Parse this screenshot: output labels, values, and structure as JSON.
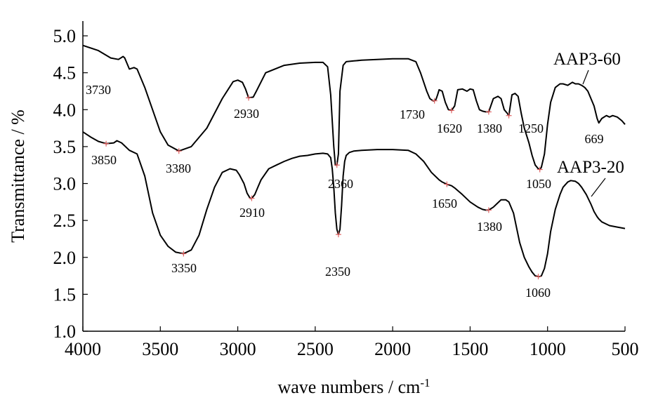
{
  "chart_data": {
    "type": "line",
    "title": "",
    "xlabel": "wave numbers / cm",
    "xlabel_superscript": "-1",
    "ylabel": "Transmittance / %",
    "xlim": [
      4000,
      500
    ],
    "ylim": [
      1.0,
      5.2
    ],
    "x_reversed": true,
    "x_ticks": [
      4000,
      3500,
      3000,
      2500,
      2000,
      1500,
      1000,
      500
    ],
    "x_tick_labels": [
      "4000",
      "3500",
      "3000",
      "2500",
      "2000",
      "1500",
      "1000",
      "500"
    ],
    "y_ticks": [
      1.0,
      1.5,
      2.0,
      2.5,
      3.0,
      3.5,
      4.0,
      4.5,
      5.0
    ],
    "y_tick_labels": [
      "1.0",
      "1.5",
      "2.0",
      "2.5",
      "3.0",
      "3.5",
      "4.0",
      "4.5",
      "5.0"
    ],
    "grid": false,
    "series": [
      {
        "name": "AAP3-60",
        "color": "#000000",
        "x": [
          4000,
          3900,
          3820,
          3770,
          3740,
          3730,
          3700,
          3670,
          3650,
          3600,
          3500,
          3450,
          3380,
          3300,
          3200,
          3100,
          3030,
          3000,
          2970,
          2950,
          2930,
          2900,
          2880,
          2820,
          2700,
          2600,
          2500,
          2450,
          2420,
          2400,
          2380,
          2370,
          2360,
          2350,
          2340,
          2320,
          2300,
          2250,
          2200,
          2100,
          2000,
          1900,
          1850,
          1820,
          1780,
          1760,
          1740,
          1730,
          1720,
          1710,
          1700,
          1680,
          1660,
          1640,
          1620,
          1600,
          1580,
          1550,
          1520,
          1500,
          1480,
          1460,
          1440,
          1420,
          1400,
          1380,
          1350,
          1320,
          1300,
          1280,
          1260,
          1250,
          1230,
          1210,
          1190,
          1170,
          1150,
          1120,
          1100,
          1080,
          1060,
          1050,
          1040,
          1020,
          1000,
          980,
          950,
          920,
          900,
          870,
          840,
          820,
          800,
          780,
          760,
          740,
          720,
          700,
          680,
          669,
          650,
          620,
          600,
          580,
          550,
          520,
          500
        ],
        "y": [
          4.87,
          4.8,
          4.7,
          4.68,
          4.72,
          4.7,
          4.55,
          4.57,
          4.55,
          4.3,
          3.7,
          3.52,
          3.44,
          3.5,
          3.75,
          4.15,
          4.38,
          4.4,
          4.37,
          4.28,
          4.16,
          4.17,
          4.25,
          4.5,
          4.6,
          4.63,
          4.64,
          4.64,
          4.58,
          4.2,
          3.5,
          3.25,
          3.25,
          3.4,
          4.25,
          4.6,
          4.65,
          4.66,
          4.67,
          4.68,
          4.69,
          4.69,
          4.65,
          4.5,
          4.25,
          4.15,
          4.12,
          4.12,
          4.14,
          4.2,
          4.27,
          4.25,
          4.1,
          4.0,
          3.99,
          4.05,
          4.27,
          4.28,
          4.25,
          4.28,
          4.27,
          4.12,
          4.0,
          3.98,
          3.97,
          3.97,
          4.15,
          4.18,
          4.15,
          4.0,
          3.95,
          3.92,
          4.2,
          4.22,
          4.18,
          3.95,
          3.75,
          3.55,
          3.38,
          3.25,
          3.2,
          3.19,
          3.22,
          3.4,
          3.8,
          4.1,
          4.3,
          4.35,
          4.35,
          4.33,
          4.37,
          4.35,
          4.35,
          4.33,
          4.3,
          4.25,
          4.15,
          4.05,
          3.88,
          3.82,
          3.88,
          3.92,
          3.9,
          3.92,
          3.9,
          3.85,
          3.8
        ]
      },
      {
        "name": "AAP3-20",
        "color": "#000000",
        "x": [
          4000,
          3950,
          3900,
          3850,
          3800,
          3780,
          3750,
          3700,
          3650,
          3600,
          3550,
          3500,
          3450,
          3400,
          3350,
          3300,
          3250,
          3200,
          3150,
          3100,
          3050,
          3010,
          2990,
          2960,
          2940,
          2920,
          2910,
          2890,
          2870,
          2850,
          2800,
          2750,
          2700,
          2650,
          2600,
          2550,
          2500,
          2450,
          2420,
          2400,
          2390,
          2380,
          2370,
          2360,
          2350,
          2340,
          2330,
          2320,
          2310,
          2300,
          2280,
          2250,
          2200,
          2100,
          2000,
          1900,
          1850,
          1800,
          1750,
          1700,
          1680,
          1660,
          1650,
          1620,
          1600,
          1550,
          1500,
          1450,
          1420,
          1400,
          1380,
          1350,
          1320,
          1300,
          1270,
          1250,
          1220,
          1200,
          1180,
          1150,
          1120,
          1100,
          1080,
          1060,
          1050,
          1040,
          1020,
          1000,
          980,
          950,
          920,
          900,
          870,
          850,
          820,
          800,
          780,
          750,
          720,
          700,
          680,
          669,
          650,
          620,
          600,
          550,
          500
        ],
        "y": [
          3.7,
          3.63,
          3.57,
          3.54,
          3.55,
          3.58,
          3.55,
          3.45,
          3.4,
          3.1,
          2.6,
          2.3,
          2.15,
          2.07,
          2.05,
          2.1,
          2.3,
          2.65,
          2.95,
          3.15,
          3.2,
          3.18,
          3.12,
          3.0,
          2.87,
          2.8,
          2.8,
          2.85,
          2.95,
          3.05,
          3.2,
          3.25,
          3.3,
          3.34,
          3.37,
          3.38,
          3.4,
          3.41,
          3.4,
          3.35,
          3.2,
          2.95,
          2.6,
          2.38,
          2.31,
          2.38,
          2.7,
          3.1,
          3.3,
          3.38,
          3.42,
          3.44,
          3.45,
          3.46,
          3.46,
          3.45,
          3.4,
          3.3,
          3.15,
          3.05,
          3.02,
          3.0,
          2.99,
          2.97,
          2.94,
          2.85,
          2.75,
          2.68,
          2.65,
          2.64,
          2.64,
          2.68,
          2.74,
          2.78,
          2.78,
          2.75,
          2.6,
          2.4,
          2.2,
          2.0,
          1.87,
          1.8,
          1.75,
          1.74,
          1.74,
          1.75,
          1.85,
          2.05,
          2.35,
          2.65,
          2.85,
          2.95,
          3.02,
          3.04,
          3.03,
          3.0,
          2.95,
          2.85,
          2.72,
          2.62,
          2.55,
          2.52,
          2.48,
          2.45,
          2.43,
          2.41,
          2.39
        ]
      }
    ],
    "series_labels": [
      {
        "text": "AAP3-60",
        "x": 850,
        "y": 4.35
      },
      {
        "text": "AAP3-20",
        "x": 790,
        "y": 2.9
      }
    ],
    "peak_markers": [
      {
        "series": "AAP3-60",
        "x": 3380,
        "y": 3.44,
        "label": "3380"
      },
      {
        "series": "AAP3-60",
        "x": 2930,
        "y": 4.16,
        "label": "2930"
      },
      {
        "series": "AAP3-60",
        "x": 2360,
        "y": 3.25,
        "label": "2360"
      },
      {
        "series": "AAP3-60",
        "x": 1730,
        "y": 4.12,
        "label": "1730"
      },
      {
        "series": "AAP3-60",
        "x": 1620,
        "y": 3.99,
        "label": "1620"
      },
      {
        "series": "AAP3-60",
        "x": 1380,
        "y": 3.97,
        "label": "1380"
      },
      {
        "series": "AAP3-60",
        "x": 1250,
        "y": 3.92,
        "label": "1250"
      },
      {
        "series": "AAP3-60",
        "x": 1050,
        "y": 3.19,
        "label": "1050"
      },
      {
        "series": "AAP3-20",
        "x": 3850,
        "y": 3.54,
        "label": "3850"
      },
      {
        "series": "AAP3-20",
        "x": 3350,
        "y": 2.05,
        "label": "3350"
      },
      {
        "series": "AAP3-20",
        "x": 2910,
        "y": 2.8,
        "label": "2910"
      },
      {
        "series": "AAP3-20",
        "x": 2350,
        "y": 2.31,
        "label": "2350"
      },
      {
        "series": "AAP3-20",
        "x": 1650,
        "y": 2.99,
        "label": "1650"
      },
      {
        "series": "AAP3-20",
        "x": 1380,
        "y": 2.64,
        "label": "1380"
      },
      {
        "series": "AAP3-20",
        "x": 1060,
        "y": 1.74,
        "label": "1060"
      }
    ],
    "unmarked_labels": [
      {
        "x": 3730,
        "y": 4.4,
        "label": "3730"
      },
      {
        "x": 669,
        "y": 3.68,
        "label": "669"
      }
    ]
  }
}
